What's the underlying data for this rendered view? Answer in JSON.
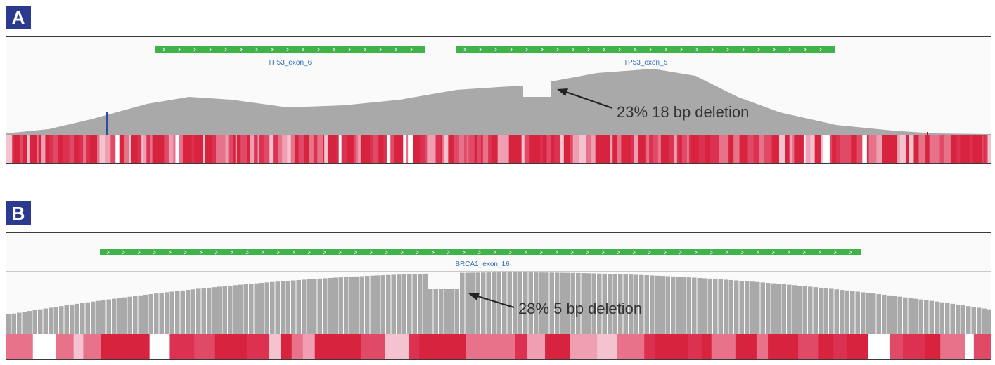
{
  "panels": [
    {
      "badge": "A",
      "exons": [
        {
          "label": "TP53_exon_6"
        },
        {
          "label": "TP53_exon_5"
        }
      ],
      "annotation": "23% 18 bp deletion",
      "track_color": "#3fb34a",
      "coverage_color": "#a9a9a9",
      "heat_color": "#d8233f"
    },
    {
      "badge": "B",
      "exons": [
        {
          "label": "BRCA1_exon_16"
        }
      ],
      "annotation": "28% 5 bp deletion",
      "track_color": "#3fb34a",
      "coverage_color": "#a9a9a9",
      "heat_color": "#d8233f"
    }
  ]
}
